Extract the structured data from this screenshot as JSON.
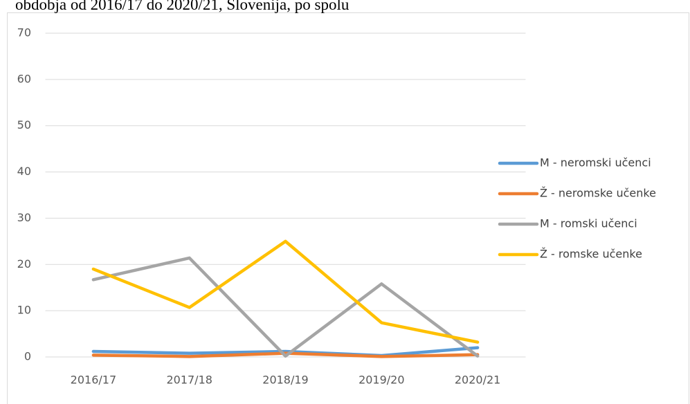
{
  "chart_data": {
    "type": "line",
    "title": "obdobja od 2016/17 do 2020/21, Slovenija, po spolu",
    "categories": [
      "2016/17",
      "2017/18",
      "2018/19",
      "2019/20",
      "2020/21"
    ],
    "series": [
      {
        "name": "M - neromski učenci",
        "color": "#5b9bd5",
        "values": [
          1.2,
          0.8,
          1.2,
          0.3,
          2.0
        ]
      },
      {
        "name": "Ž - neromske učenke",
        "color": "#ed7d31",
        "values": [
          0.4,
          0.1,
          0.8,
          0.1,
          0.5
        ]
      },
      {
        "name": "M - romski učenci",
        "color": "#a5a5a5",
        "values": [
          16.7,
          21.4,
          0.2,
          15.8,
          0.2
        ]
      },
      {
        "name": "Ž - romske učenke",
        "color": "#ffc000",
        "values": [
          19.0,
          10.7,
          25.0,
          7.4,
          3.2
        ]
      }
    ],
    "ylim": [
      0,
      70
    ],
    "yticks": [
      0,
      10,
      20,
      30,
      40,
      50,
      60,
      70
    ],
    "grid": true,
    "legend": "right"
  }
}
